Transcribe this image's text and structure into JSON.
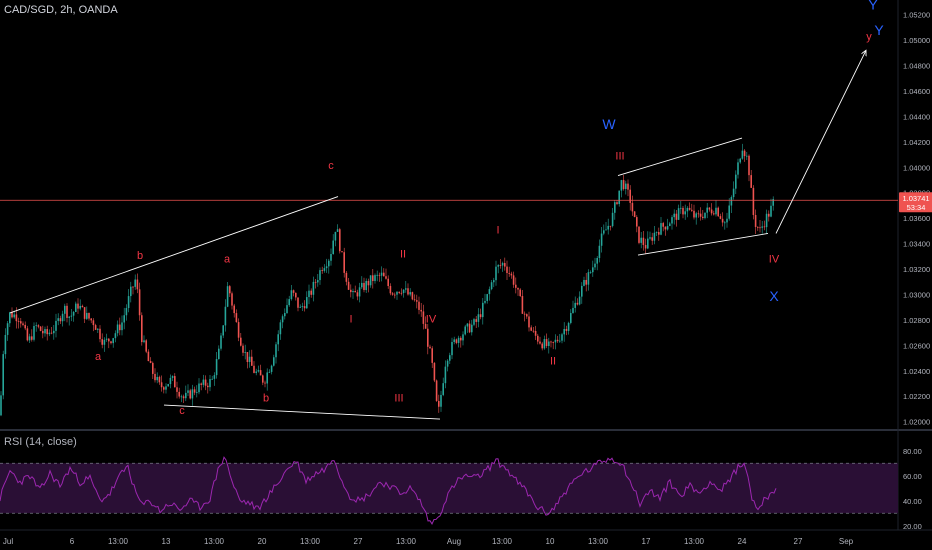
{
  "header": {
    "symbol": "CAD/SGD, 2h, OANDA"
  },
  "rsi_header": "RSI (14, close)",
  "price_badge": {
    "value": "1.03741",
    "countdown": "53:34"
  },
  "colors": {
    "background": "#000000",
    "up": "#26a69a",
    "down": "#ef5350",
    "wave_red": "#f23645",
    "wave_blue": "#2962ff",
    "trendline": "#ffffff",
    "price_line": "#ef5350",
    "rsi_line": "#9c27b0",
    "rsi_band": "#2a0f35",
    "axis_text": "#b2b5be"
  },
  "chart_data": [
    {
      "type": "candlestick",
      "series_name": "CAD/SGD",
      "ylim": [
        1.0195,
        1.053
      ],
      "y_ticks": [
        "1.05200",
        "1.05000",
        "1.04800",
        "1.04600",
        "1.04400",
        "1.04200",
        "1.04000",
        "1.03800",
        "1.03600",
        "1.03400",
        "1.03200",
        "1.03000",
        "1.02800",
        "1.02600",
        "1.02400",
        "1.02200",
        "1.02000"
      ],
      "x_ticks": [
        "Jul",
        "6",
        "13:00",
        "13",
        "13:00",
        "20",
        "13:00",
        "27",
        "13:00",
        "Aug",
        "13:00",
        "10",
        "13:00",
        "17",
        "13:00",
        "24",
        "27",
        "Sep"
      ],
      "current_price": 1.03741,
      "path_points": [
        [
          0,
          1.0205
        ],
        [
          4,
          1.0268
        ],
        [
          10,
          1.0285
        ],
        [
          20,
          1.0282
        ],
        [
          28,
          1.0262
        ],
        [
          36,
          1.0275
        ],
        [
          46,
          1.0268
        ],
        [
          56,
          1.0275
        ],
        [
          64,
          1.029
        ],
        [
          70,
          1.0282
        ],
        [
          78,
          1.0292
        ],
        [
          86,
          1.0283
        ],
        [
          94,
          1.0278
        ],
        [
          104,
          1.0262
        ],
        [
          112,
          1.0266
        ],
        [
          122,
          1.0278
        ],
        [
          130,
          1.03
        ],
        [
          136,
          1.0313
        ],
        [
          142,
          1.0265
        ],
        [
          150,
          1.0243
        ],
        [
          160,
          1.0227
        ],
        [
          172,
          1.0233
        ],
        [
          184,
          1.0218
        ],
        [
          198,
          1.0227
        ],
        [
          212,
          1.0232
        ],
        [
          220,
          1.0258
        ],
        [
          228,
          1.0308
        ],
        [
          236,
          1.0278
        ],
        [
          244,
          1.0255
        ],
        [
          254,
          1.024
        ],
        [
          264,
          1.0232
        ],
        [
          272,
          1.0248
        ],
        [
          282,
          1.0282
        ],
        [
          292,
          1.0302
        ],
        [
          300,
          1.0288
        ],
        [
          310,
          1.03
        ],
        [
          322,
          1.0322
        ],
        [
          330,
          1.033
        ],
        [
          336,
          1.0355
        ],
        [
          344,
          1.032
        ],
        [
          352,
          1.0298
        ],
        [
          362,
          1.0305
        ],
        [
          372,
          1.0312
        ],
        [
          382,
          1.0315
        ],
        [
          392,
          1.0302
        ],
        [
          402,
          1.0305
        ],
        [
          414,
          1.0295
        ],
        [
          420,
          1.0288
        ],
        [
          426,
          1.027
        ],
        [
          432,
          1.0245
        ],
        [
          438,
          1.0204
        ],
        [
          446,
          1.025
        ],
        [
          456,
          1.0265
        ],
        [
          466,
          1.0272
        ],
        [
          476,
          1.0278
        ],
        [
          486,
          1.0295
        ],
        [
          496,
          1.032
        ],
        [
          504,
          1.0325
        ],
        [
          514,
          1.031
        ],
        [
          522,
          1.029
        ],
        [
          532,
          1.027
        ],
        [
          542,
          1.0262
        ],
        [
          550,
          1.0258
        ],
        [
          558,
          1.0265
        ],
        [
          566,
          1.0275
        ],
        [
          574,
          1.029
        ],
        [
          582,
          1.0305
        ],
        [
          592,
          1.032
        ],
        [
          602,
          1.0345
        ],
        [
          612,
          1.036
        ],
        [
          622,
          1.039
        ],
        [
          630,
          1.0375
        ],
        [
          638,
          1.0345
        ],
        [
          646,
          1.0338
        ],
        [
          656,
          1.035
        ],
        [
          666,
          1.0355
        ],
        [
          676,
          1.0362
        ],
        [
          686,
          1.0368
        ],
        [
          696,
          1.036
        ],
        [
          706,
          1.0365
        ],
        [
          716,
          1.0368
        ],
        [
          726,
          1.0355
        ],
        [
          734,
          1.0385
        ],
        [
          742,
          1.0418
        ],
        [
          748,
          1.0405
        ],
        [
          754,
          1.0358
        ],
        [
          760,
          1.035
        ],
        [
          766,
          1.036
        ],
        [
          770,
          1.0365
        ],
        [
          774,
          1.03741
        ]
      ],
      "waves": [
        {
          "label": "a",
          "x": 98,
          "y": 1.02485,
          "color": "red"
        },
        {
          "label": "b",
          "x": 140,
          "y": 1.0328,
          "color": "red"
        },
        {
          "label": "c",
          "x": 182,
          "y": 1.0206,
          "color": "red"
        },
        {
          "label": "a",
          "x": 227,
          "y": 1.0325,
          "color": "red"
        },
        {
          "label": "b",
          "x": 266,
          "y": 1.0216,
          "color": "red"
        },
        {
          "label": "c",
          "x": 331,
          "y": 1.03985,
          "color": "red"
        },
        {
          "label": "I",
          "x": 351,
          "y": 1.0278,
          "color": "red"
        },
        {
          "label": "II",
          "x": 403,
          "y": 1.0329,
          "color": "red"
        },
        {
          "label": "III",
          "x": 399,
          "y": 1.0216,
          "color": "red"
        },
        {
          "label": "IV",
          "x": 431,
          "y": 1.0278,
          "color": "red"
        },
        {
          "label": "I",
          "x": 498,
          "y": 1.0348,
          "color": "red"
        },
        {
          "label": "II",
          "x": 553,
          "y": 1.0245,
          "color": "red"
        },
        {
          "label": "III",
          "x": 620,
          "y": 1.0406,
          "color": "red"
        },
        {
          "label": "IV",
          "x": 774,
          "y": 1.0325,
          "color": "red"
        },
        {
          "label": "y",
          "x": 869,
          "y": 1.05,
          "color": "red"
        },
        {
          "label": "W",
          "x": 609,
          "y": 1.043,
          "color": "blue"
        },
        {
          "label": "X",
          "x": 774,
          "y": 1.0295,
          "color": "blue"
        },
        {
          "label": "Y",
          "x": 873,
          "y": 1.0524,
          "color": "blue"
        },
        {
          "label": "Y",
          "x": 879,
          "y": 1.0504,
          "color": "blue"
        }
      ],
      "trendlines": [
        {
          "from": [
            10,
            1.02855
          ],
          "to": [
            338,
            1.0377
          ]
        },
        {
          "from": [
            164,
            1.0213
          ],
          "to": [
            440,
            1.0202
          ]
        },
        {
          "from": [
            618,
            1.03935
          ],
          "to": [
            742,
            1.0423
          ]
        },
        {
          "from": [
            638,
            1.0331
          ],
          "to": [
            768,
            1.0348
          ]
        },
        {
          "from": [
            776,
            1.0348
          ],
          "to": [
            866,
            1.0492
          ],
          "arrow": true
        }
      ]
    },
    {
      "type": "line",
      "series_name": "RSI (14, close)",
      "ylim": [
        15,
        87
      ],
      "y_ticks": [
        "80.00",
        "60.00",
        "40.00",
        "20.00"
      ],
      "bands": [
        70,
        30
      ],
      "path_points": [
        [
          0,
          42
        ],
        [
          10,
          64
        ],
        [
          20,
          55
        ],
        [
          30,
          60
        ],
        [
          40,
          48
        ],
        [
          50,
          62
        ],
        [
          60,
          52
        ],
        [
          70,
          66
        ],
        [
          80,
          55
        ],
        [
          90,
          58
        ],
        [
          100,
          40
        ],
        [
          110,
          46
        ],
        [
          120,
          60
        ],
        [
          128,
          68
        ],
        [
          134,
          50
        ],
        [
          142,
          36
        ],
        [
          150,
          40
        ],
        [
          160,
          32
        ],
        [
          170,
          38
        ],
        [
          180,
          33
        ],
        [
          190,
          40
        ],
        [
          200,
          35
        ],
        [
          210,
          42
        ],
        [
          220,
          70
        ],
        [
          226,
          74
        ],
        [
          232,
          55
        ],
        [
          240,
          40
        ],
        [
          250,
          38
        ],
        [
          258,
          33
        ],
        [
          266,
          42
        ],
        [
          276,
          52
        ],
        [
          286,
          64
        ],
        [
          296,
          72
        ],
        [
          306,
          56
        ],
        [
          316,
          62
        ],
        [
          326,
          66
        ],
        [
          334,
          75
        ],
        [
          342,
          56
        ],
        [
          350,
          44
        ],
        [
          360,
          40
        ],
        [
          370,
          46
        ],
        [
          380,
          55
        ],
        [
          390,
          52
        ],
        [
          400,
          46
        ],
        [
          410,
          50
        ],
        [
          420,
          40
        ],
        [
          430,
          22
        ],
        [
          438,
          26
        ],
        [
          446,
          42
        ],
        [
          456,
          55
        ],
        [
          466,
          60
        ],
        [
          476,
          58
        ],
        [
          486,
          64
        ],
        [
          496,
          72
        ],
        [
          506,
          66
        ],
        [
          516,
          56
        ],
        [
          526,
          48
        ],
        [
          536,
          36
        ],
        [
          546,
          30
        ],
        [
          554,
          34
        ],
        [
          562,
          44
        ],
        [
          572,
          54
        ],
        [
          582,
          62
        ],
        [
          592,
          66
        ],
        [
          602,
          72
        ],
        [
          612,
          74
        ],
        [
          622,
          70
        ],
        [
          630,
          56
        ],
        [
          640,
          38
        ],
        [
          650,
          48
        ],
        [
          660,
          42
        ],
        [
          670,
          55
        ],
        [
          680,
          44
        ],
        [
          690,
          52
        ],
        [
          700,
          46
        ],
        [
          710,
          56
        ],
        [
          720,
          48
        ],
        [
          730,
          56
        ],
        [
          740,
          70
        ],
        [
          746,
          66
        ],
        [
          752,
          42
        ],
        [
          758,
          34
        ],
        [
          764,
          40
        ],
        [
          770,
          46
        ],
        [
          776,
          50
        ]
      ]
    }
  ]
}
